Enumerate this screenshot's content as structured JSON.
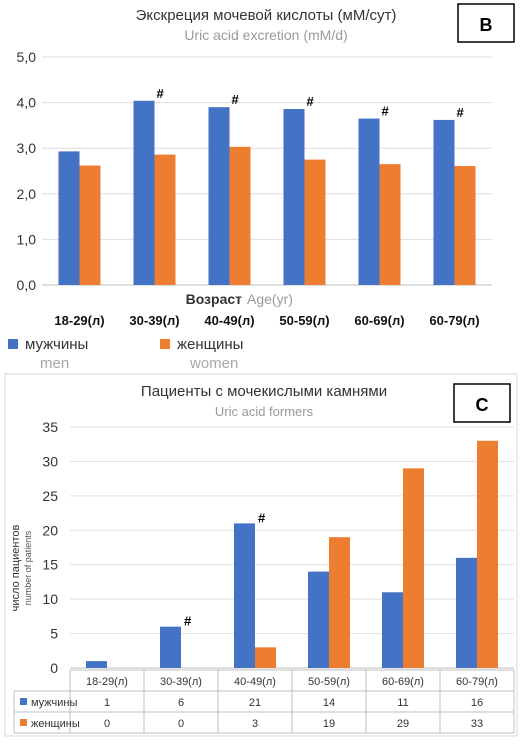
{
  "chart_data": [
    {
      "panel": "B",
      "type": "bar",
      "title": "Экскреция мочевой кислоты (мМ/сут)",
      "subtitle": "Uric acid excretion (mM/d)",
      "xlabel": "Возраст",
      "xlabel_en": "Age(yr)",
      "categories": [
        "18-29(л)",
        "30-39(л)",
        "40-49(л)",
        "50-59(л)",
        "60-69(л)",
        "60-79(л)"
      ],
      "ylim": [
        0,
        5
      ],
      "yticks": [
        "0,0",
        "1,0",
        "2,0",
        "3,0",
        "4,0",
        "5,0"
      ],
      "grid": true,
      "legend_position": "bottom-left",
      "series": [
        {
          "name": "мужчины",
          "name_en": "men",
          "color": "#4472c4",
          "values": [
            2.93,
            4.04,
            3.9,
            3.86,
            3.65,
            3.62
          ],
          "marks": [
            "",
            "#",
            "#",
            "#",
            "#",
            "#"
          ]
        },
        {
          "name": "женщины",
          "name_en": "women",
          "color": "#ed7d31",
          "values": [
            2.62,
            2.86,
            3.03,
            2.75,
            2.65,
            2.61
          ],
          "marks": [
            "",
            "",
            "",
            "",
            "",
            ""
          ]
        }
      ]
    },
    {
      "panel": "C",
      "type": "bar",
      "title": "Пациенты с мочекислыми камнями",
      "subtitle": "Uric acid formers",
      "ylabel": "число пациентов",
      "ylabel_en": "number of patients",
      "categories": [
        "18-29(л)",
        "30-39(л)",
        "40-49(л)",
        "50-59(л)",
        "60-69(л)",
        "60-79(л)"
      ],
      "ylim": [
        0,
        35
      ],
      "yticks": [
        "0",
        "5",
        "10",
        "15",
        "20",
        "25",
        "30",
        "35"
      ],
      "grid": true,
      "legend_position": "data-table",
      "series": [
        {
          "name": "мужчины",
          "color": "#4472c4",
          "values": [
            1,
            6,
            21,
            14,
            11,
            16
          ],
          "marks": [
            "",
            "#",
            "#",
            "",
            "",
            ""
          ]
        },
        {
          "name": "женщины",
          "color": "#ed7d31",
          "values": [
            0,
            0,
            3,
            19,
            29,
            33
          ],
          "marks": [
            "",
            "",
            "",
            "",
            "",
            ""
          ]
        }
      ]
    }
  ]
}
